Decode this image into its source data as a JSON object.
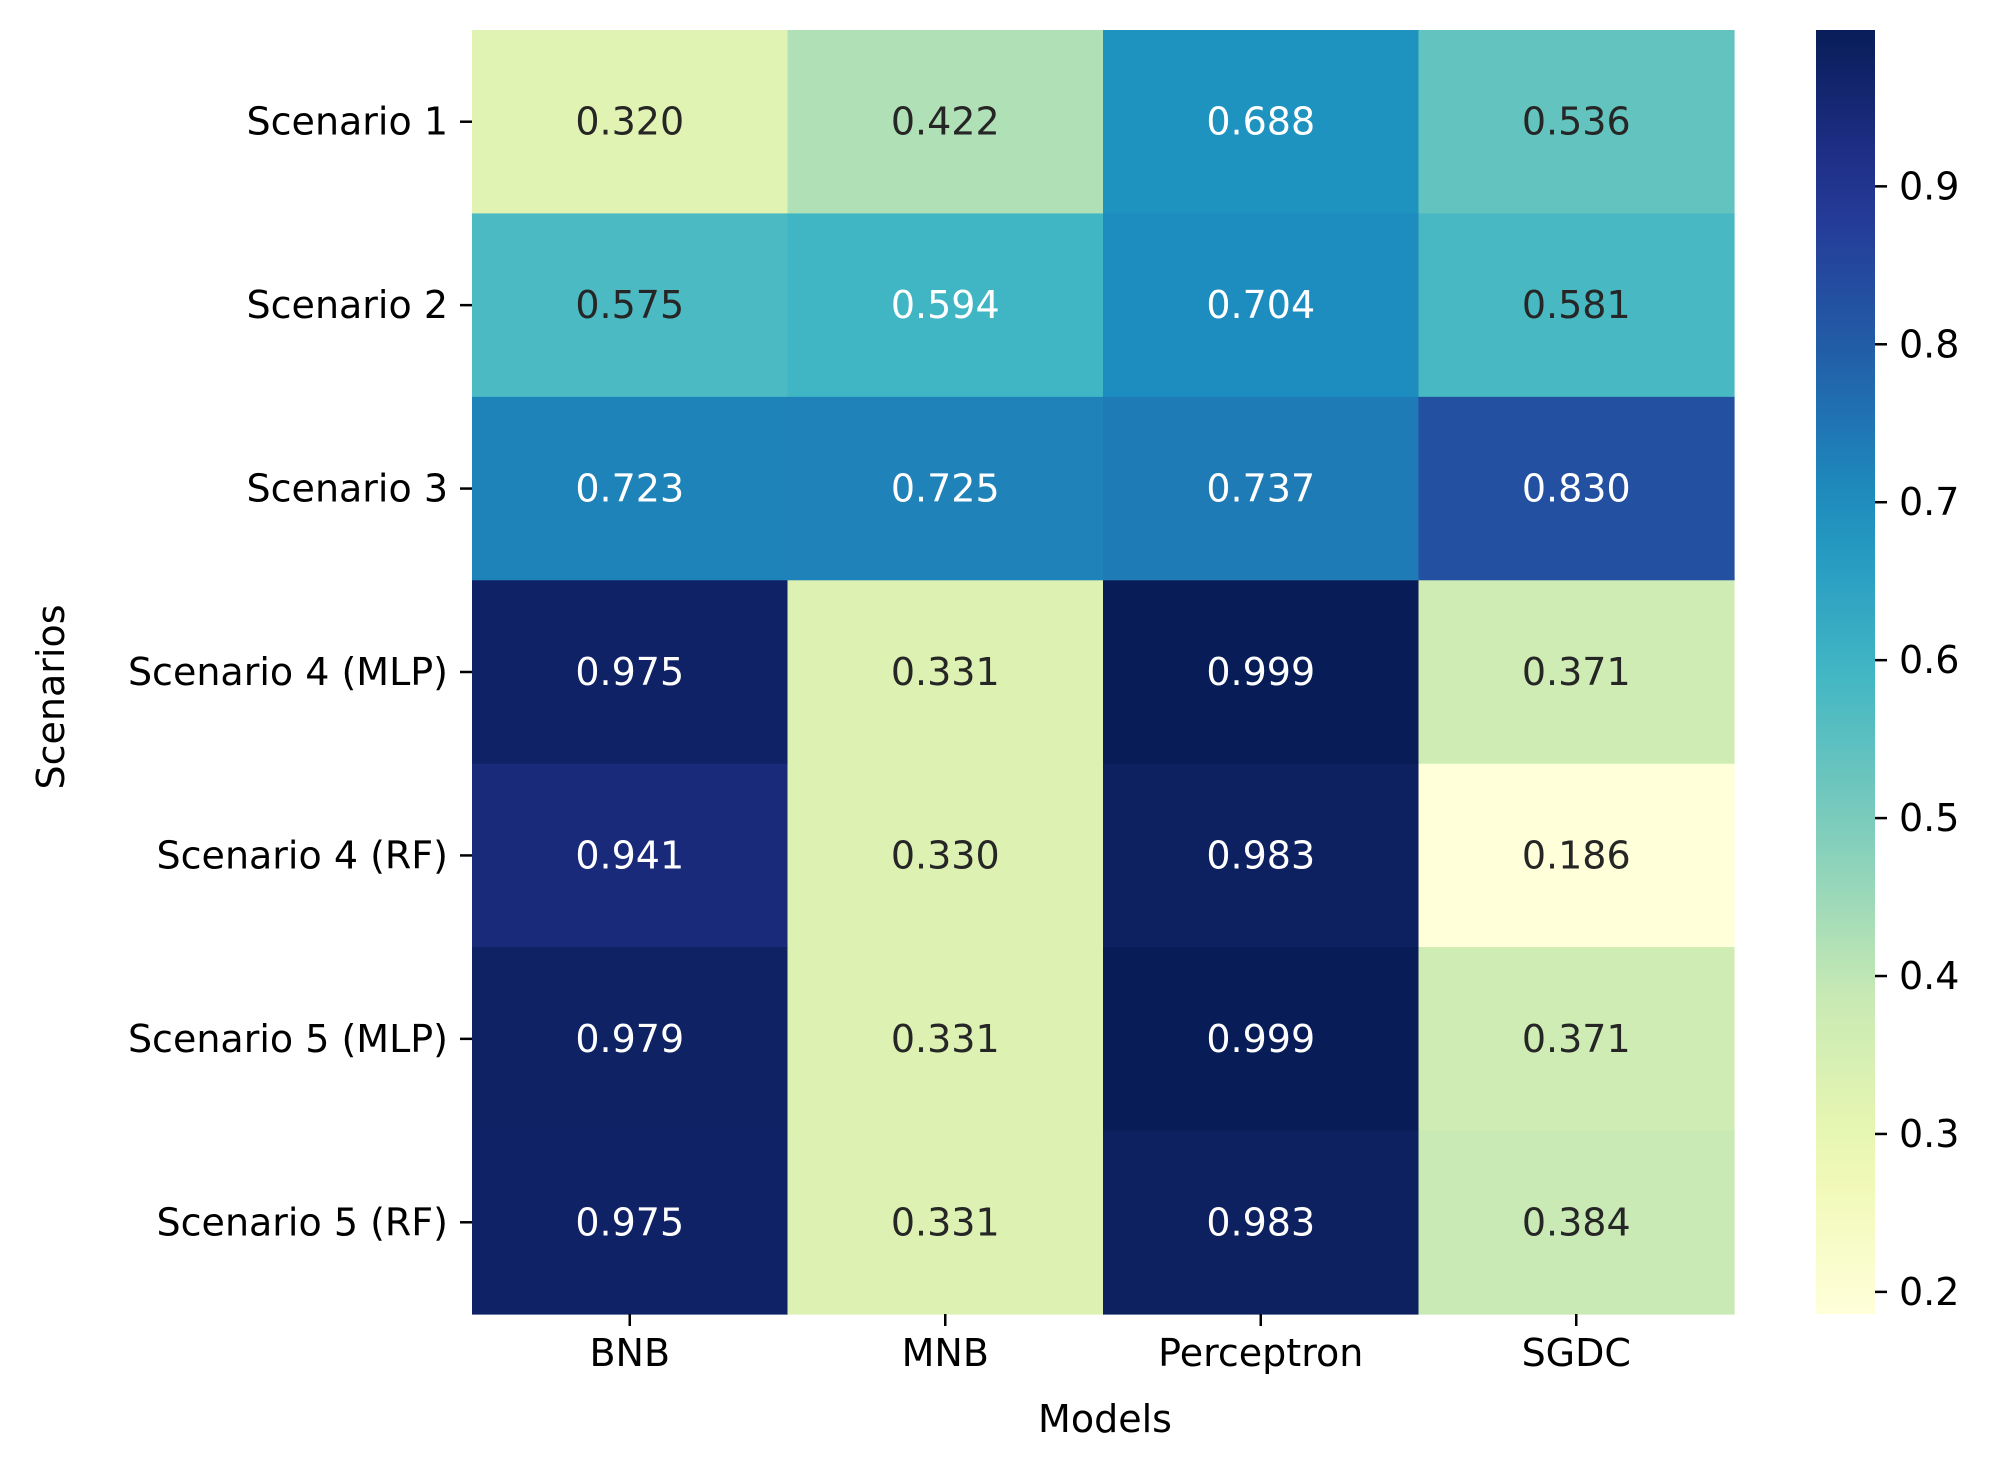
{
  "chart_data": {
    "type": "heatmap",
    "title": "",
    "xlabel": "Models",
    "ylabel": "Scenarios",
    "x_categories": [
      "BNB",
      "MNB",
      "Perceptron",
      "SGDC"
    ],
    "y_categories": [
      "Scenario 1",
      "Scenario 2",
      "Scenario 3",
      "Scenario 4 (MLP)",
      "Scenario 4 (RF)",
      "Scenario 5 (MLP)",
      "Scenario 5 (RF)"
    ],
    "values": [
      [
        0.32,
        0.422,
        0.688,
        0.536
      ],
      [
        0.575,
        0.594,
        0.704,
        0.581
      ],
      [
        0.723,
        0.725,
        0.737,
        0.83
      ],
      [
        0.975,
        0.331,
        0.999,
        0.371
      ],
      [
        0.941,
        0.33,
        0.983,
        0.186
      ],
      [
        0.979,
        0.331,
        0.999,
        0.371
      ],
      [
        0.975,
        0.331,
        0.983,
        0.384
      ]
    ],
    "value_labels": [
      [
        "0.320",
        "0.422",
        "0.688",
        "0.536"
      ],
      [
        "0.575",
        "0.594",
        "0.704",
        "0.581"
      ],
      [
        "0.723",
        "0.725",
        "0.737",
        "0.830"
      ],
      [
        "0.975",
        "0.331",
        "0.999",
        "0.371"
      ],
      [
        "0.941",
        "0.330",
        "0.983",
        "0.186"
      ],
      [
        "0.979",
        "0.331",
        "0.999",
        "0.371"
      ],
      [
        "0.975",
        "0.331",
        "0.983",
        "0.384"
      ]
    ],
    "colorbar": {
      "colormap": "YlGnBu",
      "min": 0.186,
      "max": 0.999,
      "tick_values": [
        0.2,
        0.3,
        0.4,
        0.5,
        0.6,
        0.7,
        0.8,
        0.9
      ],
      "tick_labels": [
        "0.2",
        "0.3",
        "0.4",
        "0.5",
        "0.6",
        "0.7",
        "0.8",
        "0.9"
      ]
    }
  }
}
